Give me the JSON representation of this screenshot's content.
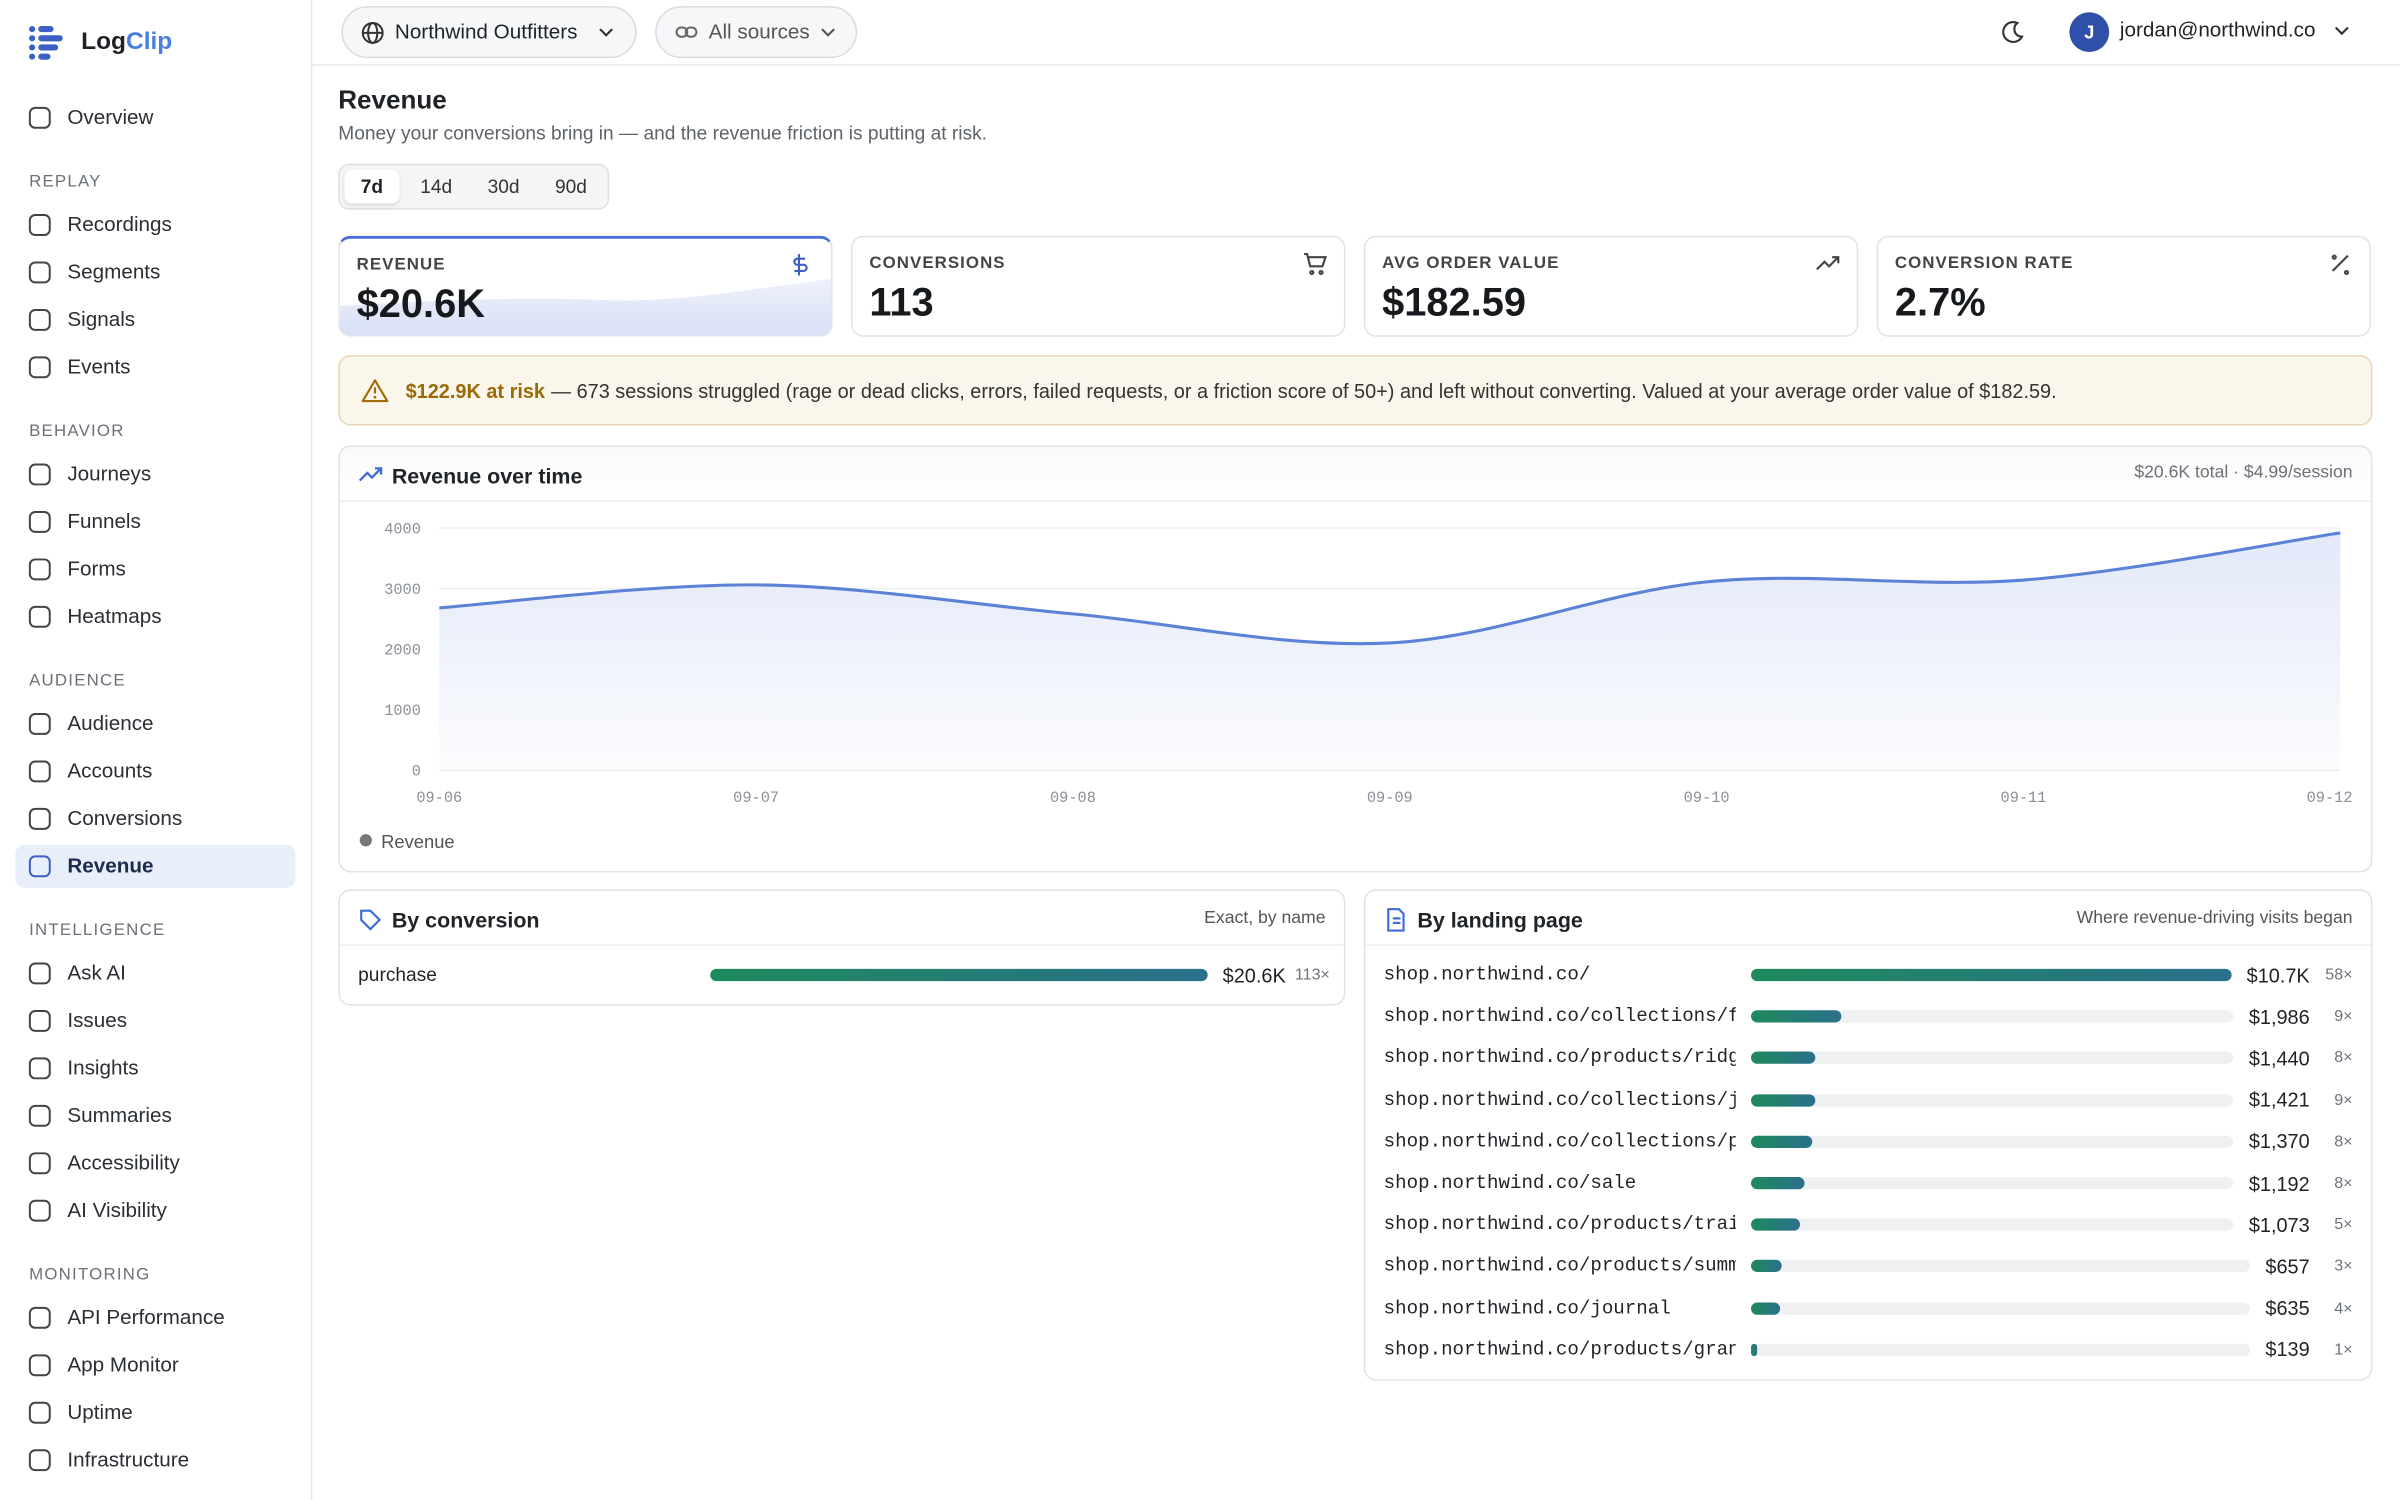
{
  "sidebar": {
    "brand": {
      "first": "Log",
      "second": "Clip"
    },
    "overview": "Overview",
    "sections": [
      {
        "title": "REPLAY",
        "items": [
          {
            "label": "Recordings"
          },
          {
            "label": "Segments"
          },
          {
            "label": "Signals"
          },
          {
            "label": "Events"
          }
        ]
      },
      {
        "title": "BEHAVIOR",
        "items": [
          {
            "label": "Journeys"
          },
          {
            "label": "Funnels"
          },
          {
            "label": "Forms"
          },
          {
            "label": "Heatmaps"
          }
        ]
      },
      {
        "title": "AUDIENCE",
        "items": [
          {
            "label": "Audience"
          },
          {
            "label": "Accounts"
          },
          {
            "label": "Conversions"
          },
          {
            "label": "Revenue",
            "active": true
          }
        ]
      },
      {
        "title": "INTELLIGENCE",
        "items": [
          {
            "label": "Ask AI"
          },
          {
            "label": "Issues"
          },
          {
            "label": "Insights"
          },
          {
            "label": "Summaries"
          },
          {
            "label": "Accessibility"
          },
          {
            "label": "AI Visibility"
          }
        ]
      },
      {
        "title": "MONITORING",
        "items": [
          {
            "label": "API Performance"
          },
          {
            "label": "App Monitor"
          },
          {
            "label": "Uptime"
          },
          {
            "label": "Infrastructure"
          }
        ]
      }
    ]
  },
  "header": {
    "workspace": "Northwind Outfitters",
    "source": "All sources",
    "avatar": "J",
    "user": "jordan@northwind.co"
  },
  "page": {
    "title": "Revenue",
    "subtitle": "Money your conversions bring in — and the revenue friction is putting at risk.",
    "ranges": [
      {
        "label": "7d",
        "active": true
      },
      {
        "label": "14d"
      },
      {
        "label": "30d"
      },
      {
        "label": "90d"
      }
    ]
  },
  "kpis": [
    {
      "label": "REVENUE",
      "value": "$20.6K"
    },
    {
      "label": "CONVERSIONS",
      "value": "113"
    },
    {
      "label": "AVG ORDER VALUE",
      "value": "$182.59"
    },
    {
      "label": "CONVERSION RATE",
      "value": "2.7%"
    }
  ],
  "alert": {
    "highlight": "$122.9K at risk",
    "text": "— 673 sessions struggled (rage or dead clicks, errors, failed requests, or a friction score of 50+) and left without converting. Valued at your average order value of $182.59."
  },
  "chart_data": {
    "type": "line",
    "title": "Revenue over time",
    "subtitle": "$20.6K total · $4.99/session",
    "categories": [
      "09-06",
      "09-07",
      "09-08",
      "09-09",
      "09-10",
      "09-11",
      "09-12"
    ],
    "series": [
      {
        "name": "Revenue",
        "color": "#5b82d6",
        "values": [
          2680,
          3060,
          2580,
          2100,
          3110,
          3140,
          3920
        ]
      }
    ],
    "ylim": [
      0,
      4000
    ],
    "yticks": [
      0,
      1000,
      2000,
      3000,
      4000
    ],
    "grid": true,
    "legend": "bottom-left"
  },
  "by_conversion": {
    "title": "By conversion",
    "note": "Exact, by name",
    "rows": [
      {
        "name": "purchase",
        "revenue": 20600,
        "revenue_label": "$20.6K",
        "sessions_label": "113×"
      }
    ]
  },
  "by_landing_page": {
    "title": "By landing page",
    "note": "Where revenue-driving visits began",
    "rows": [
      {
        "name": "shop.northwind.co/",
        "revenue": 10700,
        "revenue_label": "$10.7K",
        "sessions_label": "58×"
      },
      {
        "name": "shop.northwind.co/collections/f…",
        "revenue": 1986,
        "revenue_label": "$1,986",
        "sessions_label": "9×"
      },
      {
        "name": "shop.northwind.co/products/ridg…",
        "revenue": 1440,
        "revenue_label": "$1,440",
        "sessions_label": "8×"
      },
      {
        "name": "shop.northwind.co/collections/j…",
        "revenue": 1421,
        "revenue_label": "$1,421",
        "sessions_label": "9×"
      },
      {
        "name": "shop.northwind.co/collections/p…",
        "revenue": 1370,
        "revenue_label": "$1,370",
        "sessions_label": "8×"
      },
      {
        "name": "shop.northwind.co/sale",
        "revenue": 1192,
        "revenue_label": "$1,192",
        "sessions_label": "8×"
      },
      {
        "name": "shop.northwind.co/products/trai…",
        "revenue": 1073,
        "revenue_label": "$1,073",
        "sessions_label": "5×"
      },
      {
        "name": "shop.northwind.co/products/summ…",
        "revenue": 657,
        "revenue_label": "$657",
        "sessions_label": "3×"
      },
      {
        "name": "shop.northwind.co/journal",
        "revenue": 635,
        "revenue_label": "$635",
        "sessions_label": "4×"
      },
      {
        "name": "shop.northwind.co/products/gran…",
        "revenue": 139,
        "revenue_label": "$139",
        "sessions_label": "1×"
      }
    ]
  }
}
